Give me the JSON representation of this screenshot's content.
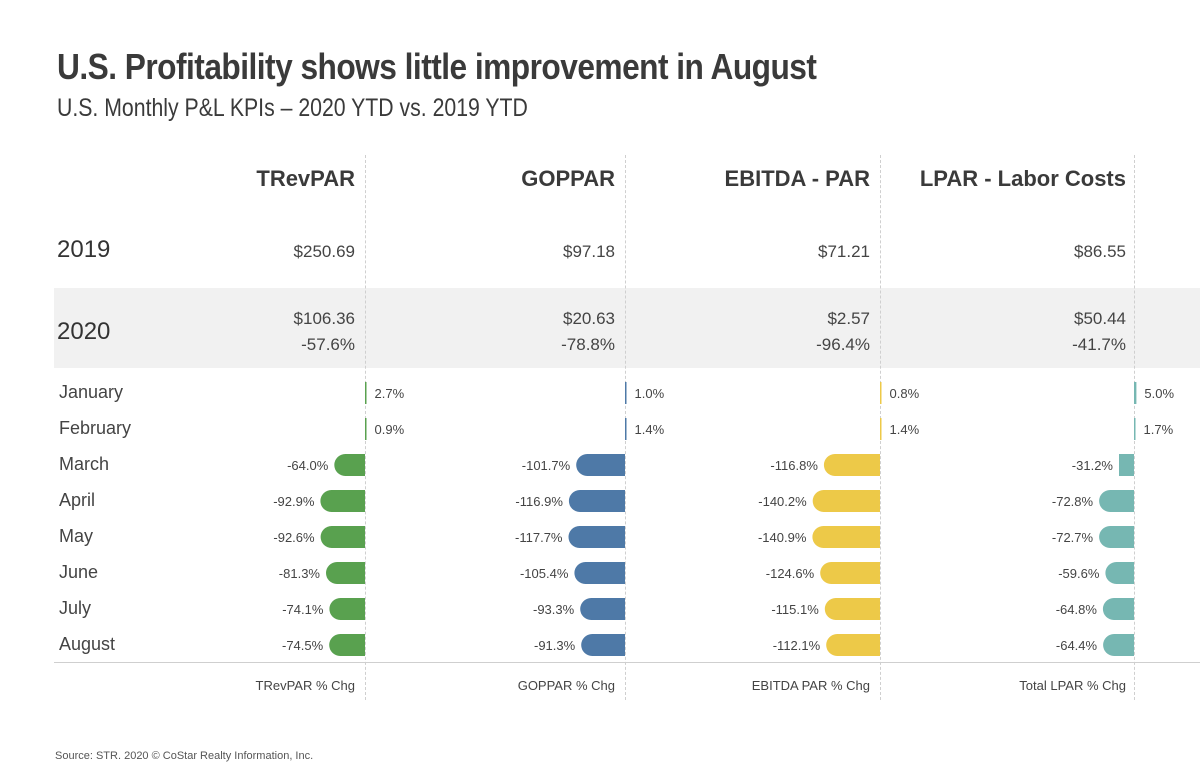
{
  "header": {
    "title": "U.S. Profitability shows little improvement in August",
    "subtitle": "U.S. Monthly P&L KPIs – 2020 YTD vs. 2019 YTD"
  },
  "table": {
    "row_2019_label": "2019",
    "row_2020_label": "2020",
    "columns": [
      {
        "name": "TRevPAR",
        "v2019": "$250.69",
        "v2020": "$106.36",
        "chg": "-57.6%",
        "footer": "TRevPAR % Chg"
      },
      {
        "name": "GOPPAR",
        "v2019": "$97.18",
        "v2020": "$20.63",
        "chg": "-78.8%",
        "footer": "GOPPAR % Chg"
      },
      {
        "name": "EBITDA - PAR",
        "v2019": "$71.21",
        "v2020": "$2.57",
        "chg": "-96.4%",
        "footer": "EBITDA PAR % Chg"
      },
      {
        "name": "LPAR - Labor Costs",
        "v2019": "$86.55",
        "v2020": "$50.44",
        "chg": "-41.7%",
        "footer": "Total LPAR % Chg"
      }
    ]
  },
  "chart_data": {
    "type": "bar",
    "orientation": "horizontal",
    "categories": [
      "January",
      "February",
      "March",
      "April",
      "May",
      "June",
      "July",
      "August"
    ],
    "series": [
      {
        "name": "TRevPAR % Chg",
        "color": "#59a14f",
        "values": [
          2.7,
          0.9,
          -64.0,
          -92.9,
          -92.6,
          -81.3,
          -74.1,
          -74.5
        ],
        "labels": [
          "2.7%",
          "0.9%",
          "-64.0%",
          "-92.9%",
          "-92.6%",
          "-81.3%",
          "-74.1%",
          "-74.5%"
        ]
      },
      {
        "name": "GOPPAR % Chg",
        "color": "#4e79a7",
        "values": [
          1.0,
          1.4,
          -101.7,
          -116.9,
          -117.7,
          -105.4,
          -93.3,
          -91.3
        ],
        "labels": [
          "1.0%",
          "1.4%",
          "-101.7%",
          "-116.9%",
          "-117.7%",
          "-105.4%",
          "-93.3%",
          "-91.3%"
        ]
      },
      {
        "name": "EBITDA PAR % Chg",
        "color": "#edc948",
        "values": [
          0.8,
          1.4,
          -116.8,
          -140.2,
          -140.9,
          -124.6,
          -115.1,
          -112.1
        ],
        "labels": [
          "0.8%",
          "1.4%",
          "-116.8%",
          "-140.2%",
          "-140.9%",
          "-124.6%",
          "-115.1%",
          "-112.1%"
        ]
      },
      {
        "name": "Total LPAR % Chg",
        "color": "#76b7b2",
        "values": [
          5.0,
          1.7,
          -31.2,
          -72.8,
          -72.7,
          -59.6,
          -64.8,
          -64.4
        ],
        "labels": [
          "5.0%",
          "1.7%",
          "-31.2%",
          "-72.8%",
          "-72.7%",
          "-59.6%",
          "-64.8%",
          "-64.4%"
        ]
      }
    ]
  },
  "source": "Source: STR. 2020 © CoStar Realty Information, Inc."
}
